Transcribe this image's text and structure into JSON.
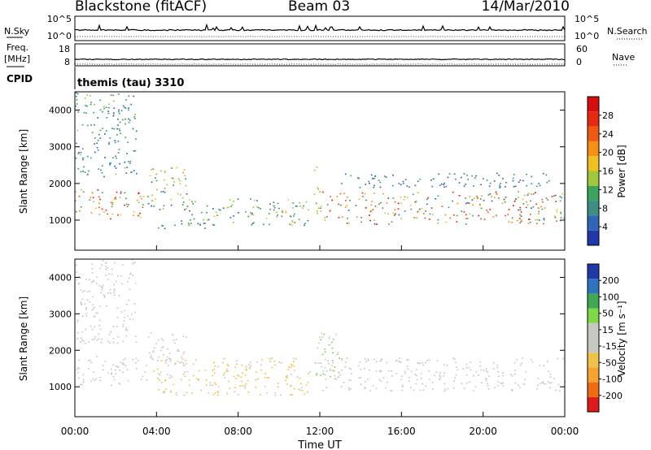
{
  "header": {
    "station": "Blackstone (fitACF)",
    "beam": "Beam 03",
    "date": "14/Mar/2010"
  },
  "summary": {
    "nsky_label": "N.Sky",
    "nsky_ticks": [
      "10^5",
      "10^0"
    ],
    "nsearch_label": "N.Search",
    "nsearch_ticks": [
      "10^5",
      "10^0"
    ],
    "freq_label": "Freq.",
    "freq_unit": "[MHz]",
    "freq_ticks": [
      "18",
      "8"
    ],
    "nave_label": "Nave",
    "nave_ticks": [
      "60",
      "0"
    ],
    "cpid_label": "CPID",
    "cpid_value": "themis (tau) 3310"
  },
  "colors": {
    "axis": "#000000",
    "power_scale": [
      "#1f3aa8",
      "#2f66b8",
      "#3e8e84",
      "#3aa55a",
      "#a0c83a",
      "#f0c020",
      "#f59015",
      "#ee5a12",
      "#e52a10",
      "#d80d0d"
    ],
    "velocity_scale": [
      "#e01a1a",
      "#f06a10",
      "#f5a32a",
      "#f0c24a",
      "#c8c8c2",
      "#c8c8c2",
      "#7fd84a",
      "#3ea853",
      "#2f72c0",
      "#1f3aa8"
    ]
  },
  "chart_data": [
    {
      "type": "heatmap",
      "name": "power",
      "ylabel": "Slant Range [km]",
      "xlabel": "Time UT",
      "ylim": [
        180,
        4500
      ],
      "yticks": [
        1000,
        2000,
        3000,
        4000
      ],
      "x_ticks": [
        "00:00",
        "04:00",
        "08:00",
        "12:00",
        "16:00",
        "20:00",
        "00:00"
      ],
      "colorbar_label": "Power [dB]",
      "colorbar_ticks": [
        "28",
        "24",
        "20",
        "16",
        "12",
        "8",
        "4"
      ],
      "colorbar_range": [
        0,
        32
      ],
      "regions": [
        {
          "t": [
            "00:00",
            "03:30"
          ],
          "range_km": [
            1050,
            1850
          ],
          "power_db": [
            8,
            30
          ]
        },
        {
          "t": [
            "03:30",
            "05:30"
          ],
          "range_km": [
            1300,
            2500
          ],
          "power_db": [
            4,
            20
          ]
        },
        {
          "t": [
            "00:00",
            "03:00"
          ],
          "range_km": [
            2200,
            4500
          ],
          "power_db": [
            4,
            14
          ]
        },
        {
          "t": [
            "03:50",
            "06:30"
          ],
          "range_km": [
            780,
            1000
          ],
          "power_db": [
            4,
            14
          ]
        },
        {
          "t": [
            "05:30",
            "11:30"
          ],
          "range_km": [
            850,
            1600
          ],
          "power_db": [
            4,
            18
          ]
        },
        {
          "t": [
            "11:40",
            "12:00"
          ],
          "range_km": [
            1200,
            2500
          ],
          "power_db": [
            8,
            24
          ]
        },
        {
          "t": [
            "12:00",
            "24:00"
          ],
          "range_km": [
            900,
            1800
          ],
          "power_db": [
            4,
            30
          ]
        },
        {
          "t": [
            "13:00",
            "23:30"
          ],
          "range_km": [
            1900,
            2300
          ],
          "power_db": [
            4,
            10
          ]
        }
      ]
    },
    {
      "type": "heatmap",
      "name": "velocity",
      "ylabel": "Slant Range [km]",
      "xlabel": "Time UT",
      "ylim": [
        180,
        4500
      ],
      "yticks": [
        1000,
        2000,
        3000,
        4000
      ],
      "x_ticks": [
        "00:00",
        "04:00",
        "08:00",
        "12:00",
        "16:00",
        "20:00",
        "00:00"
      ],
      "colorbar_label": "Velocity [m s⁻¹]",
      "colorbar_ticks": [
        "200",
        "100",
        "50",
        "15",
        "-15",
        "-50",
        "-100",
        "-200"
      ],
      "colorbar_range": [
        -250,
        250
      ],
      "regions": [
        {
          "t": [
            "00:00",
            "03:30"
          ],
          "range_km": [
            1050,
            1850
          ],
          "velocity": [
            -15,
            15
          ]
        },
        {
          "t": [
            "03:30",
            "05:30"
          ],
          "range_km": [
            1300,
            2500
          ],
          "velocity": [
            -15,
            15
          ]
        },
        {
          "t": [
            "00:00",
            "03:00"
          ],
          "range_km": [
            2200,
            4500
          ],
          "velocity": [
            -15,
            15
          ]
        },
        {
          "t": [
            "03:50",
            "11:30"
          ],
          "range_km": [
            780,
            1800
          ],
          "velocity": [
            -100,
            -30
          ]
        },
        {
          "t": [
            "11:40",
            "13:00"
          ],
          "range_km": [
            1200,
            2500
          ],
          "velocity": [
            15,
            80
          ]
        },
        {
          "t": [
            "12:00",
            "24:00"
          ],
          "range_km": [
            900,
            1800
          ],
          "velocity": [
            -15,
            15
          ]
        }
      ]
    }
  ]
}
